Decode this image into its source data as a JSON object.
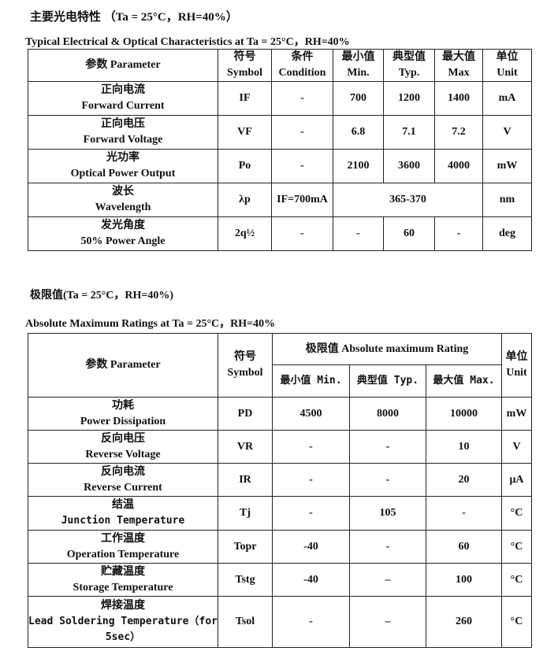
{
  "section1": {
    "heading": "主要光电特性 （Ta = 25°C，RH=40%）",
    "caption": "Typical Electrical & Optical Characteristics at Ta = 25°C，RH=40%",
    "headers": [
      [
        "参数  Parameter",
        ""
      ],
      [
        "符号",
        "Symbol"
      ],
      [
        "条件",
        "Condition"
      ],
      [
        "最小值",
        "Min."
      ],
      [
        "典型值",
        "Typ."
      ],
      [
        "最大值",
        "Max"
      ],
      [
        "单位",
        "Unit"
      ]
    ],
    "rows": [
      {
        "cn": "正向电流",
        "en": "Forward Current",
        "sym": "IF",
        "cond": "-",
        "min": "700",
        "typ": "1200",
        "max": "1400",
        "unit": "mA"
      },
      {
        "cn": "正向电压",
        "en": "Forward Voltage",
        "sym": "VF",
        "cond": "-",
        "min": "6.8",
        "typ": "7.1",
        "max": "7.2",
        "unit": "V"
      },
      {
        "cn": "光功率",
        "en": "Optical Power Output",
        "sym": "Po",
        "cond": "-",
        "min": "2100",
        "typ": "3600",
        "max": "4000",
        "unit": "mW"
      },
      {
        "cn": "波长",
        "en": "Wavelength",
        "sym": "λp",
        "cond": "IF=700mA",
        "range": "365-370",
        "unit": "nm"
      },
      {
        "cn": "发光角度",
        "en": "50% Power Angle",
        "sym": "2q½",
        "cond": "-",
        "min": "-",
        "typ": "60",
        "max": "-",
        "unit": "deg"
      }
    ]
  },
  "section2": {
    "heading": "极限值(Ta = 25°C，RH=40%)",
    "caption": "Absolute Maximum Ratings at Ta = 25°C，RH=40%",
    "h_param": "参数  Parameter",
    "h_sym_cn": "符号",
    "h_sym_en": "Symbol",
    "h_rating": "极限值 Absolute maximum Rating",
    "h_min": "最小值 Min.",
    "h_typ": "典型值 Typ.",
    "h_max": "最大值 Max.",
    "h_unit_cn": "单位",
    "h_unit_en": "Unit",
    "rows": [
      {
        "cn": "功耗",
        "en": "Power Dissipation",
        "sym": "PD",
        "min": "4500",
        "typ": "8000",
        "max": "10000",
        "unit": "mW"
      },
      {
        "cn": "反向电压",
        "en": "Reverse Voltage",
        "sym": "VR",
        "min": "-",
        "typ": "-",
        "max": "10",
        "unit": "V"
      },
      {
        "cn": "反向电流",
        "en": "Reverse Current",
        "sym": "IR",
        "min": "-",
        "typ": "-",
        "max": "20",
        "unit": "μA"
      },
      {
        "cn": "结温",
        "en": "Junction Temperature",
        "sym": "Tj",
        "min": "-",
        "typ": "105",
        "max": "-",
        "unit": "°C"
      },
      {
        "cn": "工作温度",
        "en": "Operation Temperature",
        "sym": "Topr",
        "min": "-40",
        "typ": "-",
        "max": "60",
        "unit": "°C"
      },
      {
        "cn": "贮藏温度",
        "en": "Storage Temperature",
        "sym": "Tstg",
        "min": "-40",
        "typ": "–",
        "max": "100",
        "unit": "°C"
      },
      {
        "cn": "焊接温度",
        "en": "Lead Soldering Temperature（for 5sec）",
        "sym": "Tsol",
        "min": "-",
        "typ": "–",
        "max": "260",
        "unit": "°C"
      }
    ]
  }
}
